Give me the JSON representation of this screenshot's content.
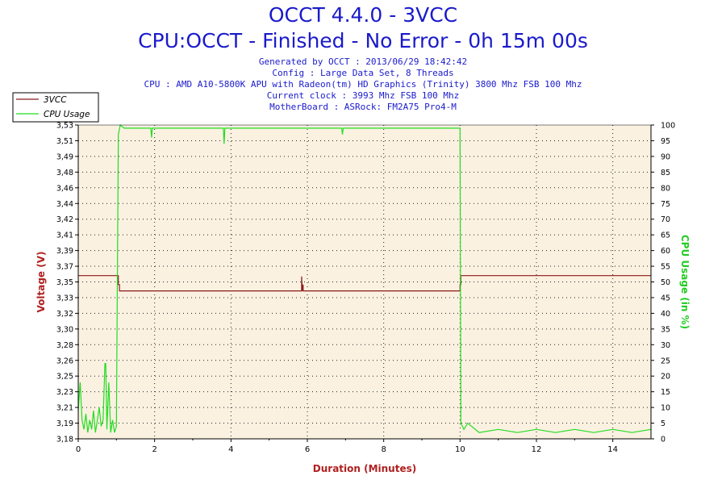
{
  "header": {
    "title": "OCCT 4.4.0 - 3VCC",
    "subtitle": "CPU:OCCT - Finished - No Error - 0h 15m 00s",
    "info_lines": [
      "Generated by OCCT : 2013/06/29 18:42:42",
      "Config : Large Data Set, 8 Threads",
      "CPU : AMD A10-5800K APU with Radeon(tm) HD Graphics (Trinity) 3800 Mhz FSB 100 Mhz",
      "Current clock : 3993 Mhz FSB 100 Mhz",
      "MotherBoard : ASRock: FM2A75 Pro4-M"
    ]
  },
  "colors": {
    "voltage": "#8b1a1a",
    "cpu": "#22dd22",
    "plot_bg": "#fbf1e1",
    "axis_label_left": "#b02020",
    "axis_label_right": "#22cc22",
    "xlabel": "#b02020"
  },
  "chart_data": {
    "type": "line",
    "xlabel": "Duration (Minutes)",
    "ylabel_left": "Voltage (V)",
    "ylabel_right": "CPU Usage (in %)",
    "xlim": [
      0,
      15
    ],
    "x_ticks": [
      "0",
      "2",
      "4",
      "6",
      "8",
      "10",
      "12",
      "14"
    ],
    "y_left_ticks": [
      "3,18",
      "3,19",
      "3,21",
      "3,23",
      "3,25",
      "3,26",
      "3,28",
      "3,30",
      "3,32",
      "3,33",
      "3,35",
      "3,37",
      "3,39",
      "3,41",
      "3,42",
      "3,44",
      "3,46",
      "3,48",
      "3,49",
      "3,51",
      "3,53"
    ],
    "ylim_left": [
      3.18,
      3.53
    ],
    "y_right_ticks": [
      "0",
      "5",
      "10",
      "15",
      "20",
      "25",
      "30",
      "35",
      "40",
      "45",
      "50",
      "55",
      "60",
      "65",
      "70",
      "75",
      "80",
      "85",
      "90",
      "95",
      "100"
    ],
    "ylim_right": [
      0,
      100
    ],
    "grid": true,
    "legend": [
      "3VCC",
      "CPU Usage"
    ],
    "legend_position": "top-left",
    "series": [
      {
        "name": "3VCC",
        "axis": "left",
        "x": [
          0,
          1.05,
          1.05,
          1.08,
          1.08,
          5.85,
          5.85,
          5.87,
          5.89,
          5.89,
          10.0,
          10.0,
          10.02,
          10.02,
          15.0
        ],
        "y": [
          3.362,
          3.362,
          3.352,
          3.352,
          3.345,
          3.345,
          3.361,
          3.345,
          3.352,
          3.345,
          3.345,
          3.352,
          3.352,
          3.362,
          3.362
        ]
      },
      {
        "name": "CPU Usage",
        "axis": "right",
        "x": [
          0,
          0.05,
          0.1,
          0.15,
          0.2,
          0.25,
          0.3,
          0.35,
          0.4,
          0.45,
          0.5,
          0.55,
          0.6,
          0.65,
          0.7,
          0.72,
          0.75,
          0.8,
          0.85,
          0.9,
          0.95,
          1.0,
          1.05,
          1.1,
          1.2,
          1.5,
          1.9,
          1.92,
          1.94,
          2.5,
          3.0,
          3.5,
          3.8,
          3.82,
          3.84,
          4.5,
          5.5,
          6.5,
          6.9,
          6.92,
          6.94,
          7.5,
          8.5,
          9.5,
          10.0,
          10.02,
          10.1,
          10.2,
          10.5,
          11.0,
          11.5,
          12.0,
          12.5,
          13.0,
          13.5,
          14.0,
          14.5,
          15.0
        ],
        "y": [
          9,
          18,
          6,
          3,
          8,
          2,
          6,
          3,
          9,
          2,
          6,
          10,
          4,
          6,
          24,
          24,
          3,
          18,
          2,
          6,
          2,
          4,
          97,
          100,
          99,
          99,
          99,
          96,
          99,
          99,
          99,
          99,
          99,
          94,
          99,
          99,
          99,
          99,
          99,
          97,
          99,
          99,
          99,
          99,
          99,
          5,
          3,
          5,
          2,
          3,
          2,
          3,
          2,
          3,
          2,
          3,
          2,
          3
        ]
      }
    ]
  }
}
